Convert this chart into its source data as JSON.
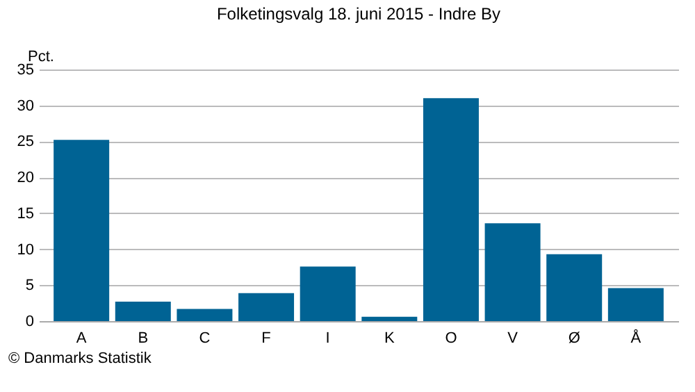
{
  "chart_data": {
    "type": "bar",
    "title": "Folketingsvalg 18. juni 2015 - Indre By",
    "ylabel": "Pct.",
    "categories": [
      "A",
      "B",
      "C",
      "F",
      "I",
      "K",
      "O",
      "V",
      "Ø",
      "Å"
    ],
    "values": [
      25.2,
      2.7,
      1.7,
      3.9,
      7.6,
      0.6,
      31.0,
      13.6,
      9.3,
      4.6
    ],
    "color": "#006394",
    "ylim": [
      0,
      35
    ],
    "yticks": [
      0,
      5,
      10,
      15,
      20,
      25,
      30,
      35
    ],
    "grid": "y",
    "annotations": [
      "© Danmarks Statistik"
    ]
  }
}
